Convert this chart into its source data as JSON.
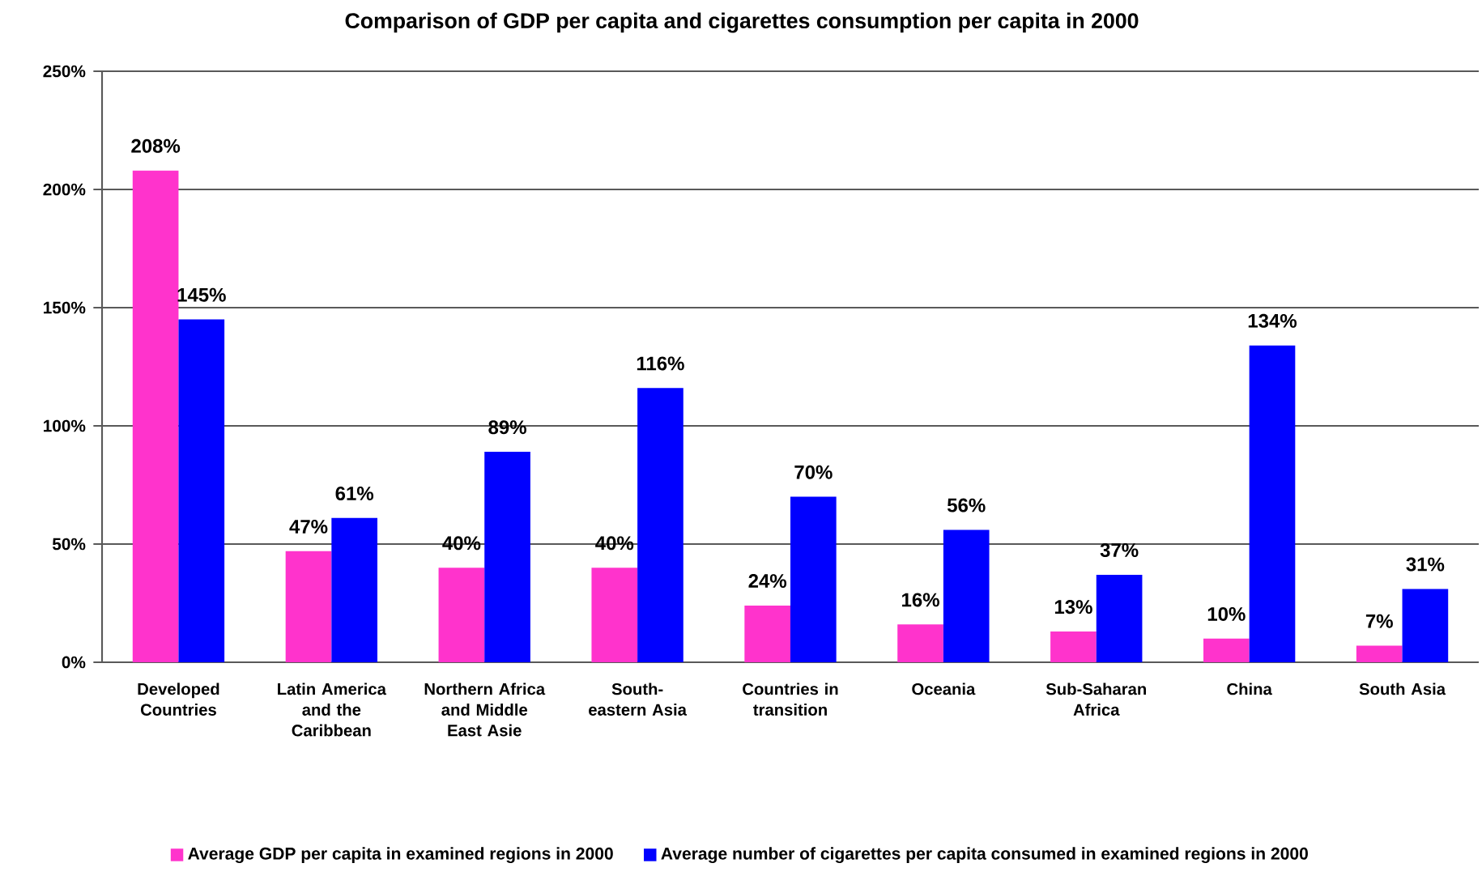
{
  "chart_data": {
    "type": "bar",
    "title": "Comparison of GDP per capita and cigarettes consumption per capita in 2000",
    "categories": [
      "Developed Countries",
      "Latin America and the Caribbean",
      "Northern Africa and Middle East Asie",
      "South-eastern Asia",
      "Countries in transition",
      "Oceania",
      "Sub-Saharan Africa",
      "China",
      "South Asia"
    ],
    "series": [
      {
        "name": "Average GDP per capita in examined regions in 2000",
        "color": "#ff33cc",
        "values": [
          208,
          47,
          40,
          40,
          24,
          16,
          13,
          10,
          7
        ],
        "value_labels": [
          "208%",
          "47%",
          "40%",
          "40%",
          "24%",
          "16%",
          "13%",
          "10%",
          "7%"
        ]
      },
      {
        "name": "Average number of cigarettes per capita consumed in examined regions in 2000",
        "color": "#0000ff",
        "values": [
          145,
          61,
          89,
          116,
          70,
          56,
          37,
          134,
          31
        ],
        "value_labels": [
          "145%",
          "61%",
          "89%",
          "116%",
          "70%",
          "56%",
          "37%",
          "134%",
          "31%"
        ]
      }
    ],
    "ylim": [
      0,
      250
    ],
    "yticks": [
      {
        "value": 0,
        "label": "0%"
      },
      {
        "value": 50,
        "label": "50%"
      },
      {
        "value": 100,
        "label": "100%"
      },
      {
        "value": 150,
        "label": "150%"
      },
      {
        "value": 200,
        "label": "200%"
      },
      {
        "value": 250,
        "label": "250%"
      }
    ],
    "grid": "y",
    "legend": "bottom"
  }
}
